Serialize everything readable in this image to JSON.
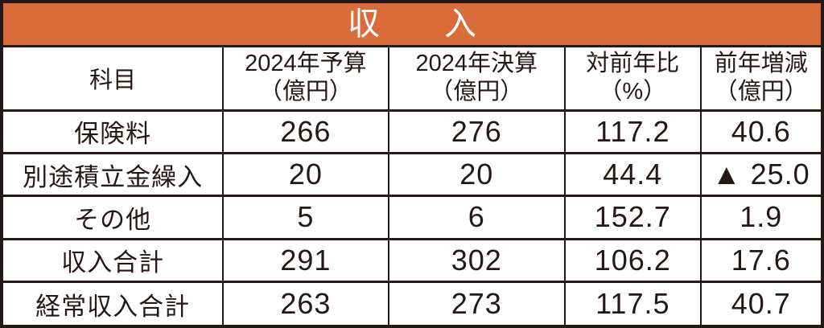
{
  "banner": {
    "title": "収　　入"
  },
  "table": {
    "type": "table",
    "header": {
      "item_label": "科目",
      "columns": [
        {
          "line1": "2024年予算",
          "line2": "（億円）"
        },
        {
          "line1": "2024年決算",
          "line2": "（億円）"
        },
        {
          "line1": "対前年比",
          "line2": "（%）"
        },
        {
          "line1": "前年増減",
          "line2": "（億円）"
        }
      ]
    },
    "rows": [
      {
        "label": "保険料",
        "values": [
          "266",
          "276",
          "117.2",
          "40.6"
        ]
      },
      {
        "label": "別途積立金繰入",
        "values": [
          "20",
          "20",
          "44.4",
          "▲ 25.0"
        ]
      },
      {
        "label": "その他",
        "values": [
          "5",
          "6",
          "152.7",
          "1.9"
        ]
      },
      {
        "label": "収入合計",
        "values": [
          "291",
          "302",
          "106.2",
          "17.6"
        ]
      },
      {
        "label": "経常収入合計",
        "values": [
          "263",
          "273",
          "117.5",
          "40.7"
        ]
      }
    ]
  },
  "colors": {
    "banner_bg": "#D96C3A",
    "banner_text": "#FFFFFF",
    "border": "#231815",
    "text": "#231815",
    "cell_bg": "#FFFFFF"
  }
}
